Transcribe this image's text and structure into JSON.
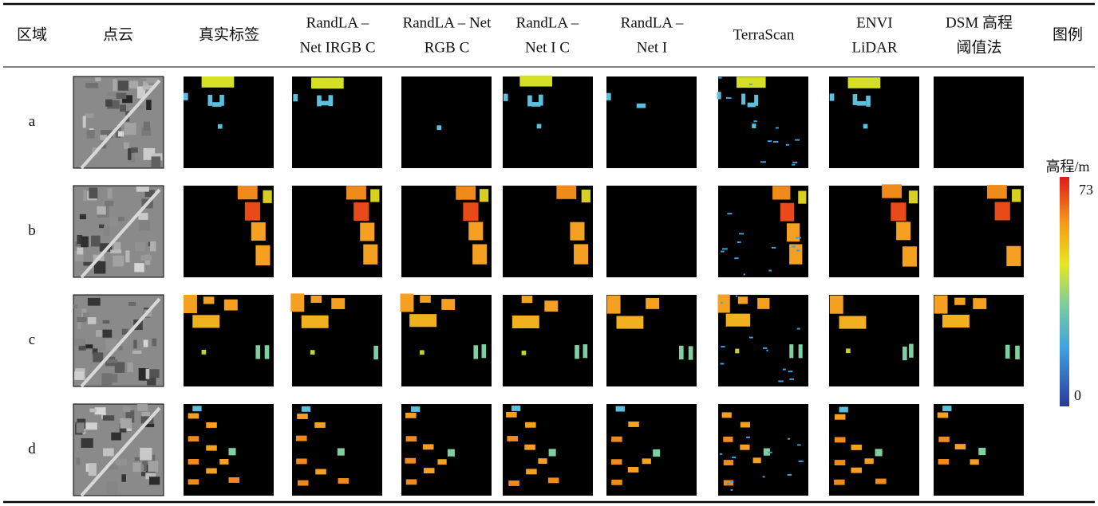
{
  "header": {
    "columns": [
      [
        "区域"
      ],
      [
        "点云"
      ],
      [
        "真实标签"
      ],
      [
        "RandLA –",
        "Net IRGB C"
      ],
      [
        "RandLA – Net",
        "RGB C"
      ],
      [
        "RandLA –",
        "Net I C"
      ],
      [
        "RandLA –",
        "Net I"
      ],
      [
        "TerraScan"
      ],
      [
        "ENVI",
        "LiDAR"
      ],
      [
        "DSM 高程",
        "阈值法"
      ],
      [
        "图例"
      ]
    ]
  },
  "rows": [
    "a",
    "b",
    "c",
    "d"
  ],
  "legend": {
    "title": "高程/m",
    "max": 73,
    "min": 0
  }
}
